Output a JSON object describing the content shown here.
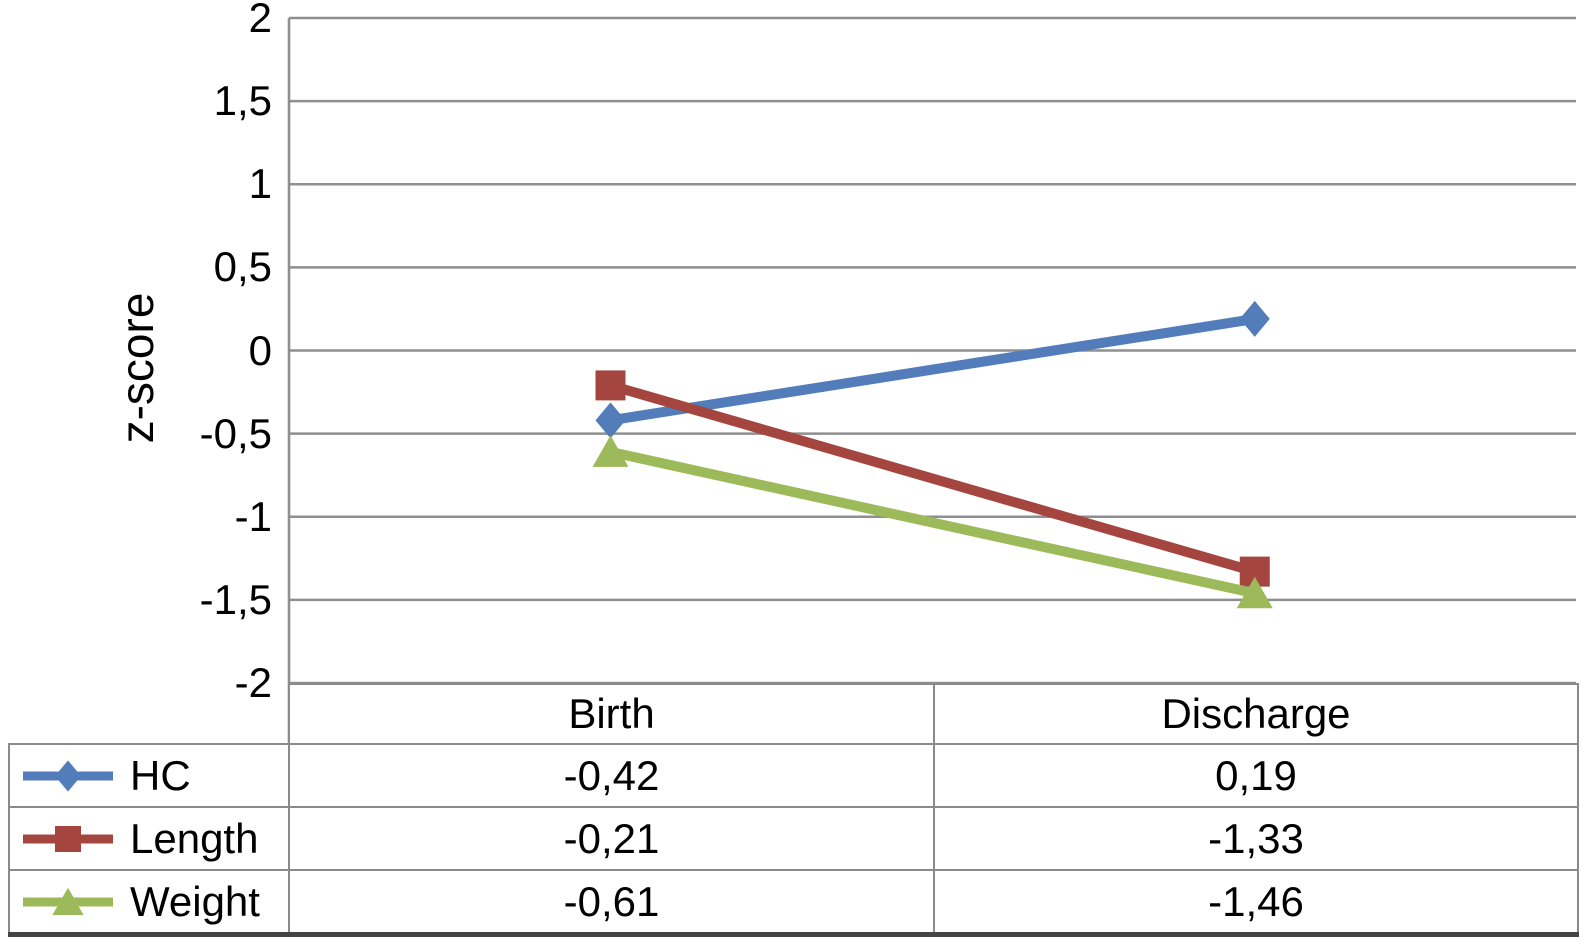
{
  "chart_data": {
    "type": "line",
    "title": "",
    "xlabel": "",
    "ylabel": "z-score",
    "categories": [
      "Birth",
      "Discharge"
    ],
    "series": [
      {
        "name": "HC",
        "marker": "diamond",
        "color": "#527dba",
        "values": [
          -0.42,
          0.19
        ]
      },
      {
        "name": "Length",
        "marker": "square",
        "color": "#a5453f",
        "values": [
          -0.21,
          -1.33
        ]
      },
      {
        "name": "Weight",
        "marker": "triangle",
        "color": "#9cba5a",
        "values": [
          -0.61,
          -1.46
        ]
      }
    ],
    "ylim": [
      -2,
      2
    ],
    "ytick_values": [
      2,
      1.5,
      1,
      0.5,
      0,
      -0.5,
      -1,
      -1.5,
      -2
    ],
    "ytick_labels": [
      "2",
      "1,5",
      "1",
      "0,5",
      "0",
      "-0,5",
      "-1",
      "-1,5",
      "-2"
    ],
    "grid": true,
    "legend_position": "table-left",
    "decimal_separator": ","
  },
  "data_table": {
    "column_headers": [
      "Birth",
      "Discharge"
    ],
    "rows": [
      {
        "label": "HC",
        "cells": [
          "-0,42",
          "0,19"
        ]
      },
      {
        "label": "Length",
        "cells": [
          "-0,21",
          "-1,33"
        ]
      },
      {
        "label": "Weight",
        "cells": [
          "-0,61",
          "-1,46"
        ]
      }
    ]
  },
  "colors": {
    "background": "#ffffff",
    "text": "#000000",
    "gridline": "#8f8f8f",
    "axis_line": "#8f8f8f",
    "table_border": "#8a8a8a",
    "table_bottom_border": "#454545",
    "series_hc": "#527dba",
    "series_length": "#a5453f",
    "series_weight": "#9cba5a"
  }
}
